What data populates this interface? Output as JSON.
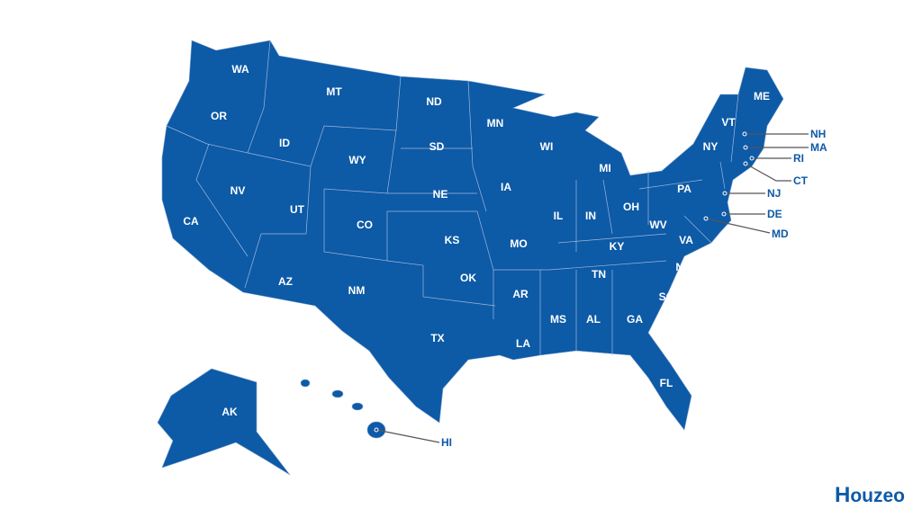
{
  "colors": {
    "state_fill": "#0d5aa7",
    "border": "#9fb8d8",
    "leader": "#555555"
  },
  "states_inline": [
    "WA",
    "OR",
    "CA",
    "ID",
    "NV",
    "MT",
    "WY",
    "UT",
    "AZ",
    "CO",
    "NM",
    "ND",
    "SD",
    "NE",
    "KS",
    "OK",
    "TX",
    "MN",
    "IA",
    "MO",
    "AR",
    "LA",
    "WI",
    "IL",
    "MI",
    "IN",
    "KY",
    "TN",
    "MS",
    "AL",
    "GA",
    "FL",
    "SC",
    "NC",
    "VA",
    "WV",
    "OH",
    "PA",
    "NY",
    "VT",
    "ME",
    "AK"
  ],
  "states_callout": [
    "NH",
    "MA",
    "RI",
    "CT",
    "NJ",
    "DE",
    "MD",
    "HI"
  ],
  "logo": {
    "text": "ouzeo",
    "initial": "H"
  }
}
